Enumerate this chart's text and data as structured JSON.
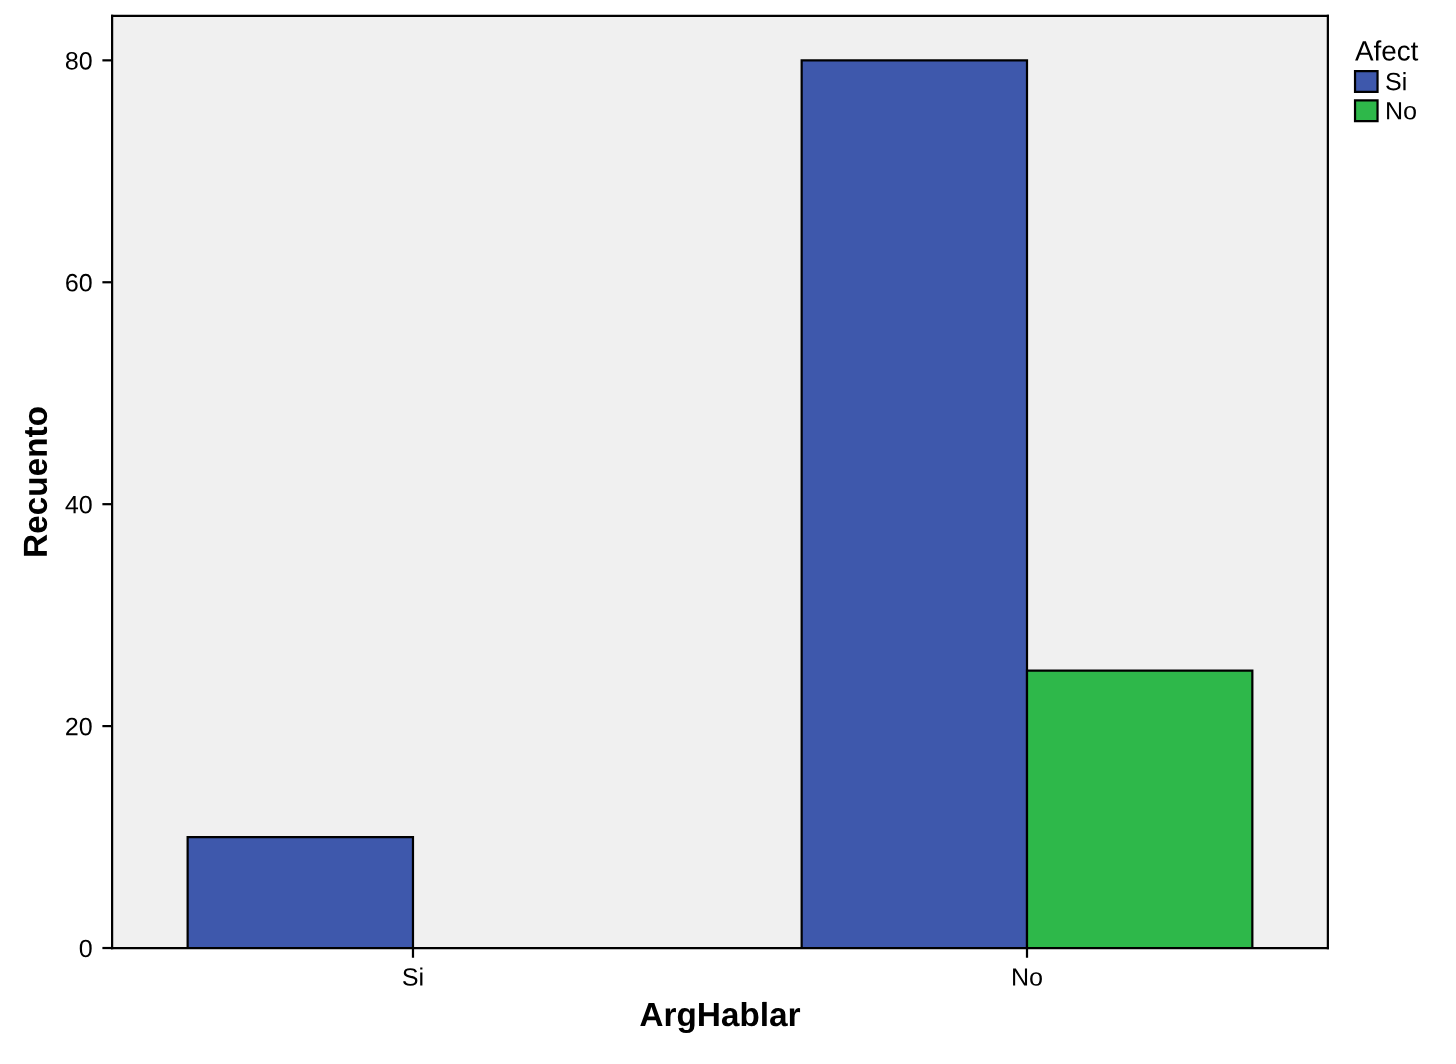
{
  "chart_data": {
    "type": "bar",
    "xlabel": "ArgHablar",
    "ylabel": "Recuento",
    "legend_title": "Afect",
    "categories": [
      "Si",
      "No"
    ],
    "series": [
      {
        "name": "Si",
        "color": "#3e58ac",
        "values": [
          10,
          80
        ]
      },
      {
        "name": "No",
        "color": "#2eb84a",
        "values": [
          null,
          25
        ]
      }
    ],
    "ylim": [
      0,
      84
    ],
    "yticks": [
      0,
      20,
      40,
      60,
      80
    ],
    "grid": false,
    "legend": "top right"
  }
}
